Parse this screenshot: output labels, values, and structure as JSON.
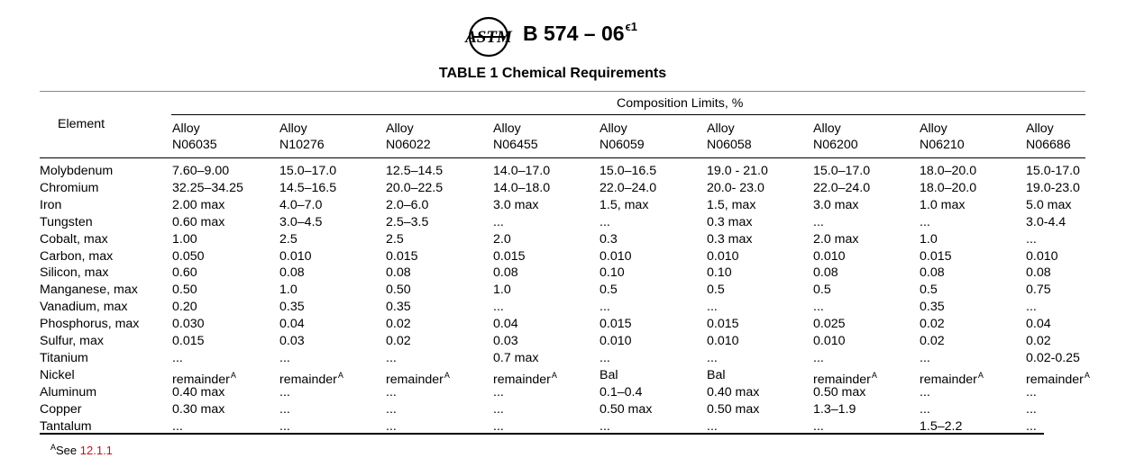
{
  "header": {
    "logo_text": "ASTM",
    "designation": "B 574 – 06",
    "designation_sup": "ϵ1"
  },
  "table": {
    "title": "TABLE 1  Chemical Requirements",
    "element_header": "Element",
    "group_header": "Composition Limits, %",
    "alloys": [
      {
        "line1": "Alloy",
        "line2": "N06035"
      },
      {
        "line1": "Alloy",
        "line2": "N10276"
      },
      {
        "line1": "Alloy",
        "line2": "N06022"
      },
      {
        "line1": "Alloy",
        "line2": "N06455"
      },
      {
        "line1": "Alloy",
        "line2": "N06059"
      },
      {
        "line1": "Alloy",
        "line2": "N06058"
      },
      {
        "line1": "Alloy",
        "line2": "N06200"
      },
      {
        "line1": "Alloy",
        "line2": "N06210"
      },
      {
        "line1": "Alloy",
        "line2": "N06686"
      }
    ],
    "rows": [
      {
        "element": "Molybdenum",
        "values": [
          "7.60–9.00",
          "15.0–17.0",
          "12.5–14.5",
          "14.0–17.0",
          "15.0–16.5",
          "19.0 - 21.0",
          "15.0–17.0",
          "18.0–20.0",
          "15.0-17.0"
        ]
      },
      {
        "element": "Chromium",
        "values": [
          "32.25–34.25",
          "14.5–16.5",
          "20.0–22.5",
          "14.0–18.0",
          "22.0–24.0",
          "20.0- 23.0",
          "22.0–24.0",
          "18.0–20.0",
          "19.0-23.0"
        ]
      },
      {
        "element": "Iron",
        "values": [
          "2.00 max",
          "4.0–7.0",
          "2.0–6.0",
          "3.0 max",
          "1.5, max",
          "1.5, max",
          "3.0 max",
          "1.0 max",
          "5.0 max"
        ]
      },
      {
        "element": "Tungsten",
        "values": [
          "0.60 max",
          "3.0–4.5",
          "2.5–3.5",
          "...",
          "...",
          "0.3 max",
          "...",
          "...",
          "3.0-4.4"
        ]
      },
      {
        "element": "Cobalt, max",
        "values": [
          "1.00",
          "2.5",
          "2.5",
          "2.0",
          "0.3",
          "0.3 max",
          "2.0 max",
          "1.0",
          "..."
        ]
      },
      {
        "element": "Carbon, max",
        "values": [
          "0.050",
          "0.010",
          "0.015",
          "0.015",
          "0.010",
          "0.010",
          "0.010",
          "0.015",
          "0.010"
        ]
      },
      {
        "element": "Silicon, max",
        "values": [
          "0.60",
          "0.08",
          "0.08",
          "0.08",
          "0.10",
          "0.10",
          "0.08",
          "0.08",
          "0.08"
        ]
      },
      {
        "element": "Manganese, max",
        "values": [
          "0.50",
          "1.0",
          "0.50",
          "1.0",
          "0.5",
          "0.5",
          "0.5",
          "0.5",
          "0.75"
        ]
      },
      {
        "element": "Vanadium, max",
        "values": [
          "0.20",
          "0.35",
          "0.35",
          "...",
          "...",
          "...",
          "...",
          "0.35",
          "..."
        ]
      },
      {
        "element": "Phosphorus, max",
        "values": [
          "0.030",
          "0.04",
          "0.02",
          "0.04",
          "0.015",
          "0.015",
          "0.025",
          "0.02",
          "0.04"
        ]
      },
      {
        "element": "Sulfur, max",
        "values": [
          "0.015",
          "0.03",
          "0.02",
          "0.03",
          "0.010",
          "0.010",
          "0.010",
          "0.02",
          "0.02"
        ]
      },
      {
        "element": "Titanium",
        "values": [
          "...",
          "...",
          "...",
          "0.7 max",
          "...",
          "...",
          "...",
          "...",
          "0.02-0.25"
        ]
      },
      {
        "element": "Nickel",
        "values": [
          "remainder",
          "remainder",
          "remainder",
          "remainder",
          "Bal",
          "Bal",
          "remainder",
          "remainder",
          "remainder"
        ],
        "sups": [
          "A",
          "A",
          "A",
          "A",
          "",
          "",
          "A",
          "A",
          "A"
        ]
      },
      {
        "element": "Aluminum",
        "values": [
          "0.40 max",
          "...",
          "...",
          "...",
          "0.1–0.4",
          "0.40 max",
          "0.50 max",
          "...",
          "..."
        ]
      },
      {
        "element": "Copper",
        "values": [
          "0.30 max",
          "...",
          "...",
          "...",
          "0.50 max",
          "0.50 max",
          "1.3–1.9",
          "...",
          "..."
        ]
      },
      {
        "element": "Tantalum",
        "values": [
          "...",
          "...",
          "...",
          "...",
          "...",
          "...",
          "...",
          "1.5–2.2",
          "..."
        ]
      }
    ]
  },
  "footnote": {
    "marker": "A",
    "text": "See ",
    "ref": "12.1.1"
  }
}
